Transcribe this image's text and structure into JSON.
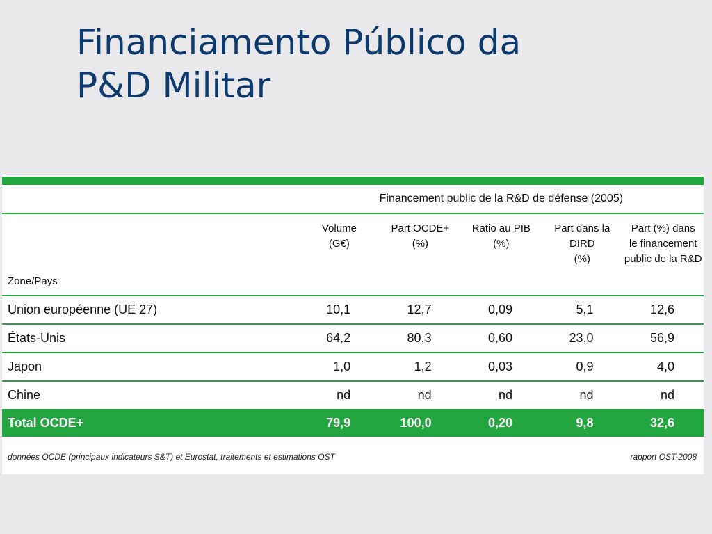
{
  "title": {
    "line1": "Financiamento Público da",
    "line2": "P&D Militar"
  },
  "table": {
    "super_header": "Financement public de la R&D de défense (2005)",
    "zone_header": "Zone/Pays",
    "columns": [
      [
        "Volume",
        "(G€)"
      ],
      [
        "Part OCDE+",
        "(%)"
      ],
      [
        "Ratio au PIB",
        "(%)"
      ],
      [
        "Part dans la DIRD",
        "(%)"
      ],
      [
        "Part (%) dans",
        "le financement",
        "public de la R&D"
      ]
    ],
    "rows": [
      {
        "zone": "Union européenne (UE 27)",
        "values": [
          "10,1",
          "12,7",
          "0,09",
          "5,1",
          "12,6"
        ]
      },
      {
        "zone": "États-Unis",
        "values": [
          "64,2",
          "80,3",
          "0,60",
          "23,0",
          "56,9"
        ]
      },
      {
        "zone": "Japon",
        "values": [
          "1,0",
          "1,2",
          "0,03",
          "0,9",
          "4,0"
        ]
      },
      {
        "zone": "Chine",
        "values": [
          "nd",
          "nd",
          "nd",
          "nd",
          "nd"
        ]
      }
    ],
    "total": {
      "zone": "Total OCDE+",
      "values": [
        "79,9",
        "100,0",
        "0,20",
        "9,8",
        "32,6"
      ]
    },
    "footnote": "données OCDE (principaux indicateurs S&T) et Eurostat, traitements et estimations OST",
    "source": "rapport OST-2008",
    "accent_color": "#23a53f"
  }
}
